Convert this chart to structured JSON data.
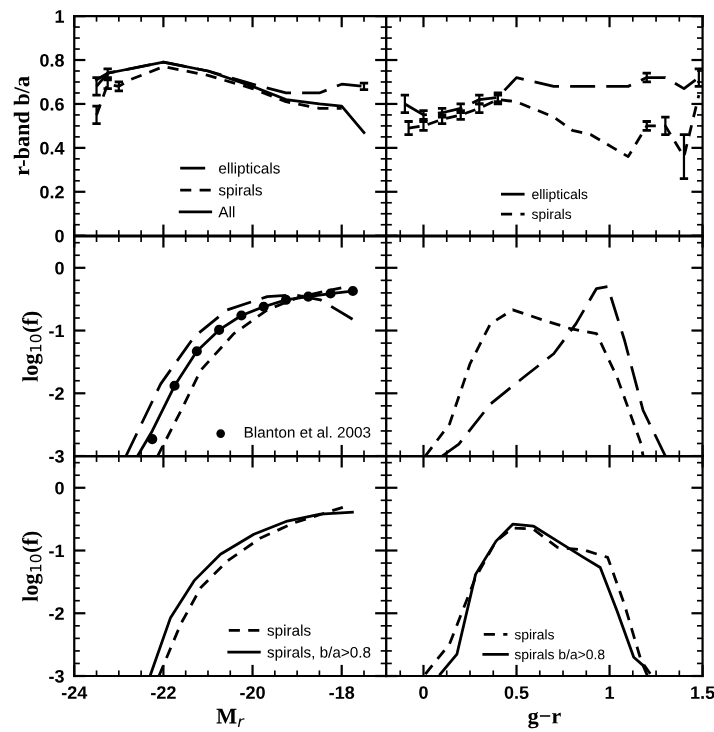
{
  "chart_data": [
    {
      "type": "line",
      "ylabel": "r-band b/a",
      "xlim": [
        -24,
        -17
      ],
      "ylim": [
        0,
        1
      ],
      "xticks": [
        -24,
        -22,
        -20,
        -18
      ],
      "yticks": [
        0,
        0.2,
        0.4,
        0.6,
        0.8,
        1
      ],
      "tick_labels": "y",
      "legend": "bottom",
      "grid": false,
      "series": [
        {
          "name": "ellipticals",
          "color": "#000000",
          "line_style": "longdashed",
          "x": [
            -23.5,
            -23.25,
            -23,
            -22,
            -21,
            -20,
            -19.25,
            -18.5,
            -18,
            -17.5
          ],
          "values": [
            0.68,
            0.74,
            0.75,
            0.79,
            0.75,
            0.69,
            0.65,
            0.65,
            0.69,
            0.68
          ],
          "errors": [
            0.04,
            0.02,
            null,
            null,
            null,
            null,
            null,
            null,
            null,
            0.015
          ]
        },
        {
          "name": "spirals",
          "color": "#000000",
          "line_style": "dashed",
          "x": [
            -23.5,
            -23.25,
            -23,
            -22.75,
            -22,
            -21,
            -20,
            -19.25,
            -18.5,
            -18
          ],
          "values": [
            0.55,
            0.69,
            0.68,
            0.71,
            0.77,
            0.73,
            0.67,
            0.61,
            0.58,
            0.58
          ],
          "errors": [
            0.04,
            0.02,
            0.02,
            null,
            null,
            null,
            null,
            null,
            null,
            null
          ]
        },
        {
          "name": "All",
          "color": "#000000",
          "line_style": "solid",
          "x": [
            -23.5,
            -23.25,
            -23,
            -22,
            -21,
            -20,
            -19.25,
            -18.5,
            -18,
            -17.5
          ],
          "values": [
            0.71,
            0.74,
            0.75,
            0.79,
            0.75,
            0.68,
            0.62,
            0.6,
            0.59,
            0.47
          ]
        }
      ]
    },
    {
      "type": "line",
      "xlim": [
        -0.2,
        1.5
      ],
      "ylim": [
        0,
        1
      ],
      "xticks": [
        0,
        0.5,
        1,
        1.5
      ],
      "yticks": [
        0,
        0.2,
        0.4,
        0.6,
        0.8,
        1
      ],
      "tick_labels": false,
      "legend": "bottom",
      "grid": false,
      "series": [
        {
          "name": "ellipticals",
          "color": "#000000",
          "line_style": "longdashed",
          "x": [
            -0.1,
            0.0,
            0.1,
            0.2,
            0.3,
            0.4,
            0.5,
            0.7,
            0.9,
            1.1,
            1.2,
            1.3,
            1.4,
            1.48
          ],
          "values": [
            0.6,
            0.55,
            0.56,
            0.58,
            0.62,
            0.63,
            0.72,
            0.68,
            0.68,
            0.68,
            0.72,
            0.72,
            0.67,
            0.72
          ],
          "errors": [
            0.04,
            0.02,
            0.02,
            0.02,
            0.02,
            0.02,
            null,
            null,
            null,
            null,
            0.02,
            null,
            null,
            0.04
          ]
        },
        {
          "name": "spirals",
          "color": "#000000",
          "line_style": "dashed",
          "x": [
            -0.08,
            0.0,
            0.1,
            0.2,
            0.3,
            0.4,
            0.5,
            0.7,
            0.8,
            0.9,
            1.1,
            1.2,
            1.3,
            1.4,
            1.48
          ],
          "values": [
            0.49,
            0.5,
            0.53,
            0.55,
            0.58,
            0.62,
            0.61,
            0.54,
            0.48,
            0.46,
            0.36,
            0.5,
            0.5,
            0.36,
            0.64
          ],
          "errors": [
            0.03,
            0.02,
            0.02,
            0.02,
            0.02,
            0.02,
            null,
            null,
            null,
            null,
            null,
            0.02,
            0.04,
            0.1,
            null
          ]
        }
      ]
    },
    {
      "type": "line",
      "ylabel": "log$_{10}$(f)",
      "xlim": [
        -24,
        -17
      ],
      "ylim": [
        -3,
        0.5
      ],
      "xticks": [
        -24,
        -22,
        -20,
        -18
      ],
      "yticks": [
        -3,
        -2,
        -1,
        0
      ],
      "tick_labels": "y",
      "legend": "bottom right",
      "grid": false,
      "series": [
        {
          "color": "#000000",
          "line_style": "longdashed",
          "x": [
            -22.84,
            -22.06,
            -21.31,
            -20.57,
            -19.67,
            -19.07,
            -18.48,
            -17.73
          ],
          "values": [
            -3,
            -1.85,
            -1.1,
            -0.67,
            -0.46,
            -0.43,
            -0.51,
            -0.83
          ]
        },
        {
          "color": "#000000",
          "line_style": "solid",
          "x": [
            -22.58,
            -22.25,
            -21.75,
            -21.25,
            -20.75,
            -20.25,
            -19.75,
            -19.25,
            -18.75,
            -18.25,
            -17.75
          ],
          "values": [
            -3,
            -2.6,
            -1.88,
            -1.33,
            -0.99,
            -0.76,
            -0.62,
            -0.51,
            -0.46,
            -0.41,
            -0.37
          ]
        },
        {
          "color": "#000000",
          "line_style": "dashed",
          "x": [
            -22.13,
            -21.6,
            -21.16,
            -20.42,
            -19.67,
            -18.93,
            -17.88
          ],
          "values": [
            -3,
            -2.27,
            -1.63,
            -1.05,
            -0.67,
            -0.46,
            -0.3
          ]
        },
        {
          "type": "scatter",
          "name": "Blanton et al. 2003",
          "color": "#000000",
          "marker": "circle",
          "x": [
            -22.25,
            -21.75,
            -21.25,
            -20.75,
            -20.25,
            -19.75,
            -19.25,
            -18.75,
            -18.25,
            -17.75
          ],
          "values": [
            -2.73,
            -1.88,
            -1.33,
            -0.99,
            -0.76,
            -0.62,
            -0.51,
            -0.46,
            -0.41,
            -0.37
          ]
        }
      ]
    },
    {
      "type": "line",
      "xlim": [
        -0.2,
        1.5
      ],
      "ylim": [
        -3,
        0.5
      ],
      "xticks": [
        0,
        0.5,
        1,
        1.5
      ],
      "yticks": [
        -3,
        -2,
        -1,
        0
      ],
      "tick_labels": false,
      "grid": false,
      "series": [
        {
          "color": "#000000",
          "line_style": "dashed",
          "x": [
            0.01,
            0.14,
            0.25,
            0.36,
            0.48,
            0.64,
            0.79,
            0.93,
            1.04,
            1.17,
            1.18
          ],
          "values": [
            -3,
            -2.49,
            -1.53,
            -0.89,
            -0.67,
            -0.83,
            -0.97,
            -1.05,
            -1.74,
            -2.81,
            -3
          ]
        },
        {
          "color": "#000000",
          "line_style": "longdashed",
          "x": [
            0.1,
            0.19,
            0.36,
            0.54,
            0.7,
            0.82,
            0.93,
            0.99,
            1.08,
            1.18,
            1.3
          ],
          "values": [
            -3,
            -2.81,
            -2.17,
            -1.74,
            -1.37,
            -0.89,
            -0.33,
            -0.3,
            -1.15,
            -2.27,
            -3
          ]
        }
      ]
    },
    {
      "type": "line",
      "ylabel": "log$_{10}$(f)",
      "xlabel": "M$_{r}$",
      "xlim": [
        -24,
        -17
      ],
      "ylim": [
        -3,
        0.5
      ],
      "xticks": [
        -24,
        -22,
        -20,
        -18
      ],
      "yticks": [
        -3,
        -2,
        -1,
        0
      ],
      "legend": "bottom right",
      "grid": false,
      "series": [
        {
          "name": "spirals",
          "color": "#000000",
          "line_style": "dashed",
          "x": [
            -22.1,
            -21.61,
            -21.16,
            -20.57,
            -19.82,
            -19.07,
            -17.88
          ],
          "values": [
            -3,
            -2.17,
            -1.59,
            -1.17,
            -0.8,
            -0.56,
            -0.29
          ]
        },
        {
          "name": "spirals, b/a>0.8",
          "color": "#000000",
          "line_style": "solid",
          "x": [
            -22.3,
            -21.84,
            -21.31,
            -20.72,
            -19.97,
            -19.22,
            -18.48,
            -17.76
          ],
          "values": [
            -3,
            -2.07,
            -1.48,
            -1.06,
            -0.74,
            -0.53,
            -0.42,
            -0.39
          ]
        }
      ]
    },
    {
      "type": "line",
      "xlabel": "g−r",
      "xlim": [
        -0.2,
        1.5
      ],
      "ylim": [
        -3,
        0.5
      ],
      "xticks": [
        0,
        0.5,
        1,
        1.5
      ],
      "yticks": [
        -3,
        -2,
        -1,
        0
      ],
      "tick_labels": "x",
      "legend": "bottom",
      "grid": false,
      "series": [
        {
          "name": "spirals",
          "color": "#000000",
          "line_style": "dashed",
          "x": [
            0.01,
            0.14,
            0.28,
            0.39,
            0.48,
            0.59,
            0.72,
            0.86,
            0.99,
            1.08,
            1.17,
            1.22
          ],
          "values": [
            -2.97,
            -2.49,
            -1.43,
            -0.85,
            -0.64,
            -0.66,
            -0.95,
            -0.99,
            -1.11,
            -1.86,
            -2.76,
            -2.97
          ]
        },
        {
          "name": "spirals b/a>0.8",
          "color": "#000000",
          "line_style": "solid",
          "x": [
            0.09,
            0.18,
            0.28,
            0.39,
            0.48,
            0.59,
            0.72,
            0.86,
            0.95,
            1.04,
            1.13,
            1.18,
            1.2
          ],
          "values": [
            -2.97,
            -2.65,
            -1.38,
            -0.85,
            -0.58,
            -0.61,
            -0.85,
            -1.11,
            -1.27,
            -1.96,
            -2.7,
            -2.83,
            -2.97
          ]
        }
      ]
    }
  ]
}
